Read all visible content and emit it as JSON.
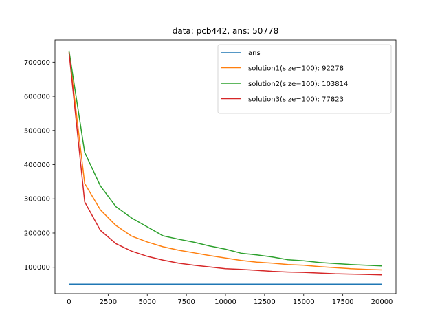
{
  "chart_data": {
    "type": "line",
    "title": "data: pcb442, ans: 50778",
    "xlabel": "",
    "ylabel": "",
    "xlim": [
      -900,
      20900
    ],
    "ylim": [
      23000,
      765000
    ],
    "xticks": [
      0,
      2500,
      5000,
      7500,
      10000,
      12500,
      15000,
      17500,
      20000
    ],
    "xtick_labels": [
      "0",
      "2500",
      "5000",
      "7500",
      "10000",
      "12500",
      "15000",
      "17500",
      "20000"
    ],
    "yticks": [
      100000,
      200000,
      300000,
      400000,
      500000,
      600000,
      700000
    ],
    "ytick_labels": [
      "100000",
      "200000",
      "300000",
      "400000",
      "500000",
      "600000",
      "700000"
    ],
    "grid": false,
    "legend_position": "top-right",
    "series": [
      {
        "name": "ans",
        "color": "#1f77b4",
        "x": [
          0,
          20000
        ],
        "y": [
          50778,
          50778
        ]
      },
      {
        "name": "solution1(size=100): 92278",
        "color": "#ff7f0e",
        "x": [
          0,
          1000,
          2000,
          3000,
          4000,
          5000,
          6000,
          7000,
          8000,
          9000,
          10000,
          11000,
          12000,
          13000,
          14000,
          15000,
          16000,
          17000,
          18000,
          19000,
          20000
        ],
        "y": [
          730000,
          345000,
          268000,
          222000,
          191000,
          174000,
          160000,
          150000,
          142000,
          134000,
          127000,
          120000,
          115000,
          112000,
          108000,
          106000,
          102000,
          99000,
          96000,
          94000,
          92278
        ]
      },
      {
        "name": "solution2(size=100): 103814",
        "color": "#2ca02c",
        "x": [
          0,
          1000,
          2000,
          3000,
          4000,
          5000,
          6000,
          7000,
          8000,
          9000,
          10000,
          11000,
          12000,
          13000,
          14000,
          15000,
          16000,
          17000,
          18000,
          19000,
          20000
        ],
        "y": [
          733000,
          436000,
          338000,
          277000,
          244000,
          218000,
          192000,
          182000,
          173000,
          162000,
          153000,
          141000,
          136000,
          130000,
          122000,
          119000,
          114000,
          111000,
          108000,
          106000,
          103814
        ]
      },
      {
        "name": "solution3(size=100): 77823",
        "color": "#d62728",
        "x": [
          0,
          1000,
          2000,
          3000,
          4000,
          5000,
          6000,
          7000,
          8000,
          9000,
          10000,
          11000,
          12000,
          13000,
          14000,
          15000,
          16000,
          17000,
          18000,
          19000,
          20000
        ],
        "y": [
          728000,
          291000,
          208000,
          169000,
          147000,
          132000,
          121000,
          112000,
          106000,
          101000,
          96000,
          94000,
          91000,
          88000,
          86000,
          85000,
          83000,
          81000,
          80000,
          79000,
          77823
        ]
      }
    ]
  }
}
